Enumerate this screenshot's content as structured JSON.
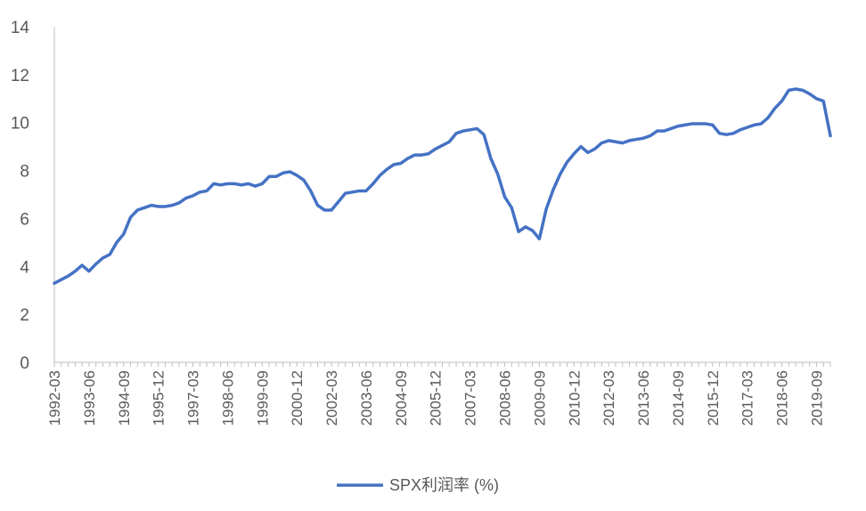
{
  "chart_data": {
    "type": "line",
    "title": "",
    "xlabel": "",
    "ylabel": "",
    "ylim": [
      0,
      14
    ],
    "yticks": [
      0,
      2,
      4,
      6,
      8,
      10,
      12,
      14
    ],
    "xtick_labels": [
      "1992-03",
      "1993-06",
      "1994-09",
      "1995-12",
      "1997-03",
      "1998-06",
      "1999-09",
      "2000-12",
      "2002-03",
      "2003-06",
      "2004-09",
      "2005-12",
      "2007-03",
      "2008-06",
      "2009-09",
      "2010-12",
      "2012-03",
      "2013-06",
      "2014-09",
      "2015-12",
      "2017-03",
      "2018-06",
      "2019-09"
    ],
    "grid": false,
    "legend": "bottom-center",
    "series_color": "#4472C4",
    "series": [
      {
        "name": "SPX利润率 (%)",
        "x": [
          "1992-03",
          "1992-06",
          "1992-09",
          "1992-12",
          "1993-03",
          "1993-06",
          "1993-09",
          "1993-12",
          "1994-03",
          "1994-06",
          "1994-09",
          "1994-12",
          "1995-03",
          "1995-06",
          "1995-09",
          "1995-12",
          "1996-03",
          "1996-06",
          "1996-09",
          "1996-12",
          "1997-03",
          "1997-06",
          "1997-09",
          "1997-12",
          "1998-03",
          "1998-06",
          "1998-09",
          "1998-12",
          "1999-03",
          "1999-06",
          "1999-09",
          "1999-12",
          "2000-03",
          "2000-06",
          "2000-09",
          "2000-12",
          "2001-03",
          "2001-06",
          "2001-09",
          "2001-12",
          "2002-03",
          "2002-06",
          "2002-09",
          "2002-12",
          "2003-03",
          "2003-06",
          "2003-09",
          "2003-12",
          "2004-03",
          "2004-06",
          "2004-09",
          "2004-12",
          "2005-03",
          "2005-06",
          "2005-09",
          "2005-12",
          "2006-03",
          "2006-06",
          "2006-09",
          "2006-12",
          "2007-03",
          "2007-06",
          "2007-09",
          "2007-12",
          "2008-03",
          "2008-06",
          "2008-09",
          "2008-12",
          "2009-03",
          "2009-06",
          "2009-09",
          "2009-12",
          "2010-03",
          "2010-06",
          "2010-09",
          "2010-12",
          "2011-03",
          "2011-06",
          "2011-09",
          "2011-12",
          "2012-03",
          "2012-06",
          "2012-09",
          "2012-12",
          "2013-03",
          "2013-06",
          "2013-09",
          "2013-12",
          "2014-03",
          "2014-06",
          "2014-09",
          "2014-12",
          "2015-03",
          "2015-06",
          "2015-09",
          "2015-12",
          "2016-03",
          "2016-06",
          "2016-09",
          "2016-12",
          "2017-03",
          "2017-06",
          "2017-09",
          "2017-12",
          "2018-03",
          "2018-06",
          "2018-09",
          "2018-12",
          "2019-03",
          "2019-06",
          "2019-09",
          "2019-12",
          "2020-03"
        ],
        "values": [
          3.3,
          3.45,
          3.6,
          3.8,
          4.05,
          3.8,
          4.1,
          4.35,
          4.5,
          5.0,
          5.35,
          6.05,
          6.35,
          6.45,
          6.55,
          6.5,
          6.5,
          6.55,
          6.65,
          6.85,
          6.95,
          7.1,
          7.15,
          7.45,
          7.4,
          7.45,
          7.45,
          7.4,
          7.45,
          7.35,
          7.45,
          7.75,
          7.75,
          7.9,
          7.95,
          7.8,
          7.6,
          7.15,
          6.55,
          6.35,
          6.35,
          6.7,
          7.05,
          7.1,
          7.15,
          7.15,
          7.45,
          7.8,
          8.05,
          8.25,
          8.3,
          8.5,
          8.65,
          8.65,
          8.7,
          8.9,
          9.05,
          9.2,
          9.55,
          9.65,
          9.7,
          9.75,
          9.5,
          8.5,
          7.85,
          6.9,
          6.45,
          5.45,
          5.65,
          5.5,
          5.15,
          6.4,
          7.2,
          7.85,
          8.35,
          8.7,
          9.0,
          8.75,
          8.9,
          9.15,
          9.25,
          9.2,
          9.15,
          9.25,
          9.3,
          9.35,
          9.45,
          9.65,
          9.65,
          9.75,
          9.85,
          9.9,
          9.95,
          9.95,
          9.95,
          9.9,
          9.55,
          9.5,
          9.55,
          9.7,
          9.8,
          9.9,
          9.95,
          10.2,
          10.6,
          10.9,
          11.35,
          11.4,
          11.35,
          11.2,
          11.0,
          10.9,
          9.45
        ]
      }
    ]
  }
}
